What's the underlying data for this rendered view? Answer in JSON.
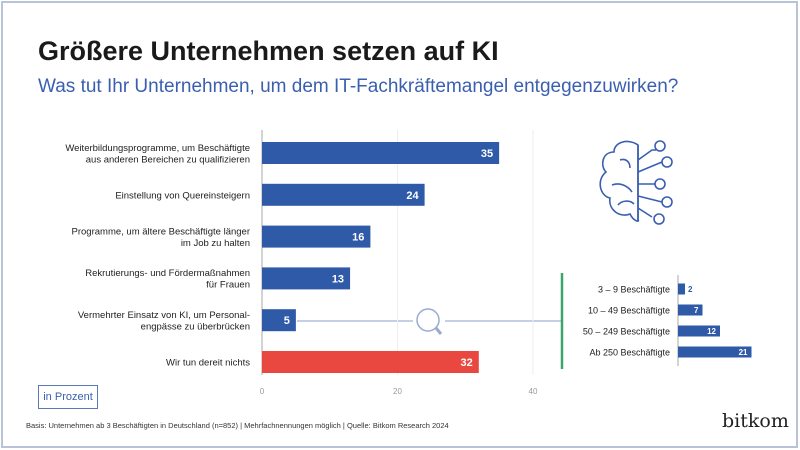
{
  "title": "Größere Unternehmen setzen auf KI",
  "subtitle": "Was tut Ihr Unternehmen, um dem IT-Fachkräftemangel entgegenzuwirken?",
  "unit_label": "in Prozent",
  "footer": "Basis: Unternehmen ab 3 Beschäftigten in Deutschland (n=852) | Mehrfachnennungen möglich | Quelle: Bitkom Research 2024",
  "logo": "bitkom",
  "colors": {
    "bar": "#2f5aa8",
    "highlight": "#e8483f",
    "accent_line": "#3aa66b",
    "axis": "#999999"
  },
  "chart_data": [
    {
      "type": "bar",
      "orientation": "horizontal",
      "categories": [
        [
          "Weiterbildungsprogramme, um Beschäftigte",
          "aus anderen Bereichen zu qualifizieren"
        ],
        [
          "Einstellung von Quereinsteigern"
        ],
        [
          "Programme, um ältere Beschäftigte länger",
          "im Job zu halten"
        ],
        [
          "Rekrutierungs- und Fördermaßnahmen",
          "für Frauen"
        ],
        [
          "Vermehrter Einsatz von KI, um Personal-",
          "engpässe zu überbrücken"
        ],
        [
          "Wir tun dereit nichts"
        ]
      ],
      "values": [
        35,
        24,
        16,
        13,
        5,
        32
      ],
      "highlight_index": 5,
      "xlim": [
        0,
        40
      ],
      "xticks": [
        "0",
        "20",
        "40"
      ],
      "grid": true
    },
    {
      "type": "bar",
      "orientation": "horizontal",
      "categories": [
        "3 – 9 Beschäftigte",
        "10 – 49 Beschäftigte",
        "50 – 249 Beschäftigte",
        "Ab 250 Beschäftigte"
      ],
      "values": [
        2,
        7,
        12,
        21
      ]
    }
  ],
  "icons": {
    "brain": "ai-brain-circuit-icon",
    "magnifier": "magnifier-icon"
  }
}
